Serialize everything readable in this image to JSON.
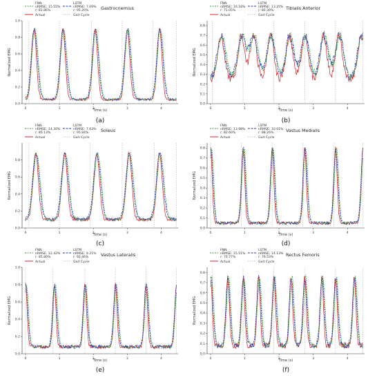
{
  "colors": {
    "fnn": "#2ca02c",
    "lstm": "#1f3ab4",
    "actual": "#d62728",
    "gait": "#b0b0b0",
    "axis": "#333333"
  },
  "chart_data": [
    {
      "type": "line",
      "panel_label": "(a)",
      "title": "Gastrocnemius",
      "xlabel": "Time (s)",
      "ylabel": "Normalized EMG",
      "xlim": [
        -0.1,
        4.5
      ],
      "ylim": [
        0,
        1.0
      ],
      "xticks": [
        "0",
        "1",
        "2",
        "3",
        "4"
      ],
      "yticks": [
        "0.0",
        "0.2",
        "0.4",
        "0.6",
        "0.8",
        "1.0"
      ],
      "legend": {
        "fnn": {
          "name": "FNN",
          "nrmse": "nRMSE: 15.55%",
          "r": "r: 81.86%"
        },
        "lstm": {
          "name": "LSTM",
          "nrmse": "nRMSE: 7.09%",
          "r": "r: 95.20%"
        },
        "actual": "Actual",
        "gait": "Gait Cycle"
      },
      "gait_cycle": [
        0.1,
        1.0,
        1.95,
        2.85,
        3.75,
        4.45
      ],
      "peaks": [
        0.25,
        1.1,
        2.05,
        3.0,
        3.95
      ],
      "peak_height": 0.9,
      "width": 0.09,
      "base": 0.05,
      "noise": 0.03
    },
    {
      "type": "line",
      "panel_label": "(b)",
      "title": "Tibialis Anterior",
      "xlabel": "Time (s)",
      "ylabel": "Normalized EMG",
      "xlim": [
        -0.1,
        4.5
      ],
      "ylim": [
        0,
        0.85
      ],
      "xticks": [
        "0",
        "1",
        "2",
        "3",
        "4"
      ],
      "yticks": [
        "0.0",
        "0.1",
        "0.2",
        "0.3",
        "0.4",
        "0.5",
        "0.6",
        "0.7",
        "0.8"
      ],
      "legend": {
        "fnn": {
          "name": "FNN",
          "nrmse": "nRMSE: 16.18%",
          "r": "r: 71.05%"
        },
        "lstm": {
          "name": "LSTM",
          "nrmse": "nRMSE: 13.25%",
          "r": "r: 80.39%"
        },
        "actual": "Actual",
        "gait": "Gait Cycle"
      },
      "gait_cycle": [
        0.05,
        0.95,
        1.85,
        2.75,
        3.65,
        4.45
      ],
      "peaks": [
        0.3,
        0.9,
        1.25,
        1.75,
        2.3,
        2.75,
        3.3,
        3.75,
        4.4
      ],
      "peak_height": 0.7,
      "width": 0.12,
      "base": 0.25,
      "noise": 0.08
    },
    {
      "type": "line",
      "panel_label": "(c)",
      "title": "Soleus",
      "xlabel": "Time (s)",
      "ylabel": "Normalized EMG",
      "xlim": [
        -0.1,
        4.5
      ],
      "ylim": [
        0,
        1.0
      ],
      "xticks": [
        "0",
        "1",
        "2",
        "3",
        "4"
      ],
      "yticks": [
        "0.0",
        "0.2",
        "0.4",
        "0.6",
        "0.8"
      ],
      "legend": {
        "fnn": {
          "name": "FNN",
          "nrmse": "nRMSE: 14.30%",
          "r": "r: 85.13%"
        },
        "lstm": {
          "name": "LSTM",
          "nrmse": "nRMSE: 7.63%",
          "r": "r: 95.84%"
        },
        "actual": "Actual",
        "gait": "Gait Cycle"
      },
      "gait_cycle": [
        0.1,
        1.0,
        1.9,
        2.85,
        3.8,
        4.45
      ],
      "peaks": [
        0.3,
        1.15,
        2.1,
        3.05,
        3.95
      ],
      "peak_height": 0.88,
      "width": 0.1,
      "base": 0.1,
      "noise": 0.04
    },
    {
      "type": "line",
      "panel_label": "(d)",
      "title": "Vastus Medialis",
      "xlabel": "Time (s)",
      "ylabel": "Normalized EMG",
      "xlim": [
        -0.1,
        4.5
      ],
      "ylim": [
        0,
        0.85
      ],
      "xticks": [
        "0",
        "1",
        "2",
        "3",
        "4"
      ],
      "yticks": [
        "0.0",
        "0.1",
        "0.2",
        "0.3",
        "0.4",
        "0.5",
        "0.6",
        "0.7",
        "0.8"
      ],
      "legend": {
        "fnn": {
          "name": "FNN",
          "nrmse": "nRMSE: 13.98%",
          "r": "r: 82.60%"
        },
        "lstm": {
          "name": "LSTM",
          "nrmse": "nRMSE: 10.01%",
          "r": "r: 88.26%"
        },
        "actual": "Actual",
        "gait": "Gait Cycle"
      },
      "gait_cycle": [
        0.0,
        0.9,
        1.8,
        2.7,
        3.6,
        4.45
      ],
      "peaks": [
        0.0,
        0.95,
        1.8,
        2.75,
        3.65,
        4.45
      ],
      "peak_height": 0.8,
      "width": 0.06,
      "base": 0.05,
      "noise": 0.03
    },
    {
      "type": "line",
      "panel_label": "(e)",
      "title": "Vastus Lateralis",
      "xlabel": "Time (s)",
      "ylabel": "Normalized EMG",
      "xlim": [
        -0.1,
        4.5
      ],
      "ylim": [
        0,
        1.0
      ],
      "xticks": [
        "0",
        "1",
        "2",
        "3",
        "4"
      ],
      "yticks": [
        "0.0",
        "0.2",
        "0.4",
        "0.6",
        "0.8",
        "1.0"
      ],
      "legend": {
        "fnn": {
          "name": "FNN",
          "nrmse": "nRMSE: 12.42%",
          "r": "r: 85.80%"
        },
        "lstm": {
          "name": "LSTM",
          "nrmse": "nRMSE: 9.21%",
          "r": "r: 92.46%"
        },
        "actual": "Actual",
        "gait": "Gait Cycle"
      },
      "gait_cycle": [
        0.0,
        0.8,
        1.75,
        2.65,
        3.55,
        4.45
      ],
      "peaks": [
        0.0,
        0.85,
        1.75,
        2.65,
        3.55,
        4.45
      ],
      "peak_height": 0.8,
      "width": 0.06,
      "base": 0.08,
      "noise": 0.04
    },
    {
      "type": "line",
      "panel_label": "(f)",
      "title": "Rectus Femoris",
      "xlabel": "Time (s)",
      "ylabel": "Normalized EMG",
      "xlim": [
        -0.1,
        4.5
      ],
      "ylim": [
        0,
        0.85
      ],
      "xticks": [
        "0",
        "1",
        "2",
        "3",
        "4"
      ],
      "yticks": [
        "0.0",
        "0.1",
        "0.2",
        "0.3",
        "0.4",
        "0.5",
        "0.6",
        "0.7",
        "0.8"
      ],
      "legend": {
        "fnn": {
          "name": "FNN",
          "nrmse": "nRMSE: 15.51%",
          "r": "r: 70.77%"
        },
        "lstm": {
          "name": "LSTM",
          "nrmse": "nRMSE: 14.13%",
          "r": "r: 76.53%"
        },
        "actual": "Actual",
        "gait": "Gait Cycle"
      },
      "gait_cycle": [
        0.05,
        0.95,
        1.85,
        2.75,
        3.65,
        4.45
      ],
      "peaks": [
        0.0,
        0.5,
        0.95,
        1.4,
        1.85,
        2.35,
        2.75,
        3.25,
        3.65,
        4.2
      ],
      "peak_height": 0.75,
      "width": 0.06,
      "base": 0.08,
      "noise": 0.06
    }
  ]
}
